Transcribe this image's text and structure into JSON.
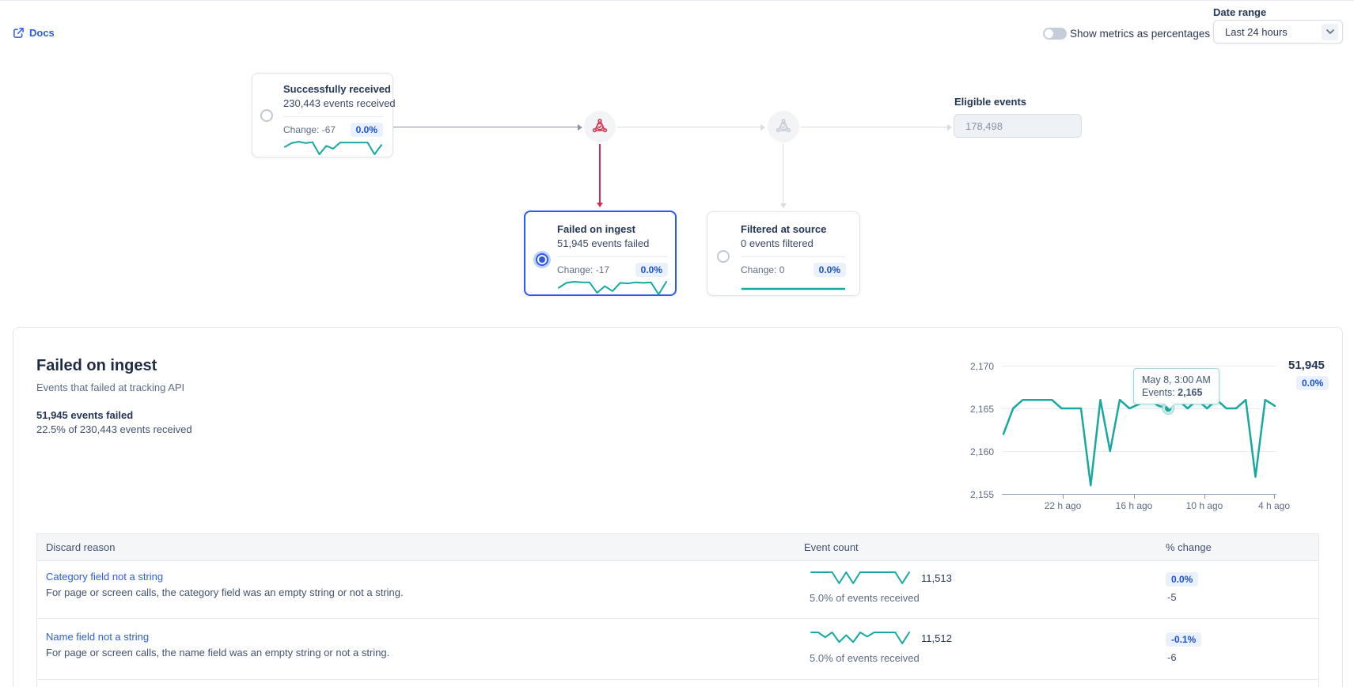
{
  "colors": {
    "teal": "#17A9A1",
    "blue": "#2A5AE8",
    "link": "#2E5BEA",
    "red": "#D92B4B",
    "badge_bg": "#E9F1FC",
    "badge_text": "#1D4FD7",
    "gray_icon": "#C4CBD6"
  },
  "header": {
    "docs_label": "Docs",
    "toggle_label": "Show metrics as percentages",
    "toggle_state": "off",
    "date_range_label": "Date range",
    "date_range_value": "Last 24 hours"
  },
  "flow": {
    "received": {
      "title": "Successfully received",
      "subtitle": "230,443 events received",
      "change_label": "Change: -67",
      "badge": "0.0%",
      "selected": false,
      "spark": [
        3.8,
        4.6,
        4.9,
        4.6,
        4.8,
        2.2,
        4.0,
        3.4,
        4.7,
        4.7,
        4.7,
        4.7,
        4.7,
        2.2,
        4.2
      ]
    },
    "failed": {
      "title": "Failed on ingest",
      "subtitle": "51,945 events failed",
      "change_label": "Change: -17",
      "badge": "0.0%",
      "selected": true,
      "spark": [
        3.5,
        4.4,
        4.6,
        4.5,
        4.5,
        2.6,
        3.8,
        2.9,
        4.4,
        4.3,
        4.5,
        4.4,
        4.5,
        2.3,
        4.6
      ]
    },
    "filtered": {
      "title": "Filtered at source",
      "subtitle": "0 events filtered",
      "change_label": "Change: 0",
      "badge": "0.0%",
      "selected": false,
      "spark": [
        3,
        3
      ]
    },
    "eligible": {
      "label": "Eligible events",
      "value": "178,498"
    }
  },
  "detail": {
    "title": "Failed on ingest",
    "subtitle": "Events that failed at tracking API",
    "stat_line1": "51,945 events failed",
    "stat_line2": "22.5% of 230,443 events received",
    "total": "51,945",
    "total_badge": "0.0%"
  },
  "chart_data": {
    "type": "line",
    "title": "Failed on ingest — events per hour (last 24 hours)",
    "xlabel": "",
    "ylabel": "Events",
    "x_tick_labels": [
      "22 h ago",
      "16 h ago",
      "10 h ago",
      "4 h ago"
    ],
    "y_tick_labels": [
      "2,170",
      "2,165",
      "2,160",
      "2,155"
    ],
    "y_ticks": [
      2170,
      2165,
      2160,
      2155
    ],
    "ylim": [
      2155,
      2172
    ],
    "grid": true,
    "legend": "none",
    "values": [
      2162,
      2165,
      2166,
      2166,
      2166,
      2166,
      2165,
      2165,
      2165,
      2156,
      2166,
      2160,
      2166,
      2165,
      2165.5,
      2166,
      2165.3,
      2165,
      2166,
      2165,
      2166,
      2165,
      2166,
      2165,
      2165,
      2166,
      2157,
      2166,
      2165.3
    ],
    "highlight_index": 17,
    "tooltip": {
      "line1": "May 8, 3:00 AM",
      "label": "Events: ",
      "value": "2,165"
    }
  },
  "table": {
    "headers": [
      "Discard reason",
      "Event count",
      "% change"
    ],
    "rows": [
      {
        "reason": "Category field not a string",
        "description": "For page or screen calls, the category field was an empty string or not a string.",
        "count": "11,513",
        "pct": "5.0% of events received",
        "badge": "0.0%",
        "delta": "-5",
        "spark": [
          4.6,
          4.6,
          4.6,
          4.6,
          2.9,
          4.6,
          2.9,
          4.6,
          4.6,
          4.6,
          4.6,
          4.6,
          4.6,
          2.9,
          4.6
        ]
      },
      {
        "reason": "Name field not a string",
        "description": "For page or screen calls, the name field was an empty string or not a string.",
        "count": "11,512",
        "pct": "5.0% of events received",
        "badge": "-0.1%",
        "delta": "-6",
        "spark": [
          4.6,
          4.6,
          3.9,
          4.6,
          3.2,
          4.2,
          3.2,
          4.6,
          4.0,
          4.6,
          4.6,
          4.6,
          4.6,
          3.0,
          4.6
        ]
      }
    ]
  }
}
